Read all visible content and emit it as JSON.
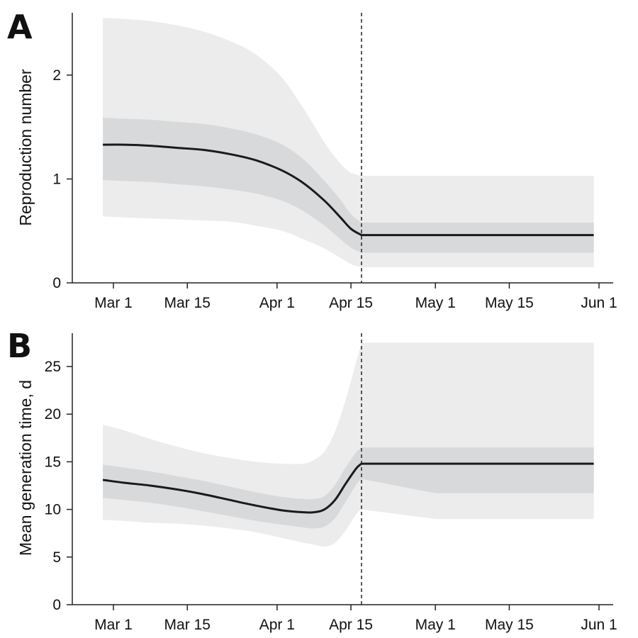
{
  "chart_data": [
    {
      "type": "area",
      "panel": "A",
      "xlabel": "",
      "ylabel": "Reproduction number",
      "x_unit": "date (2020)",
      "xlim": [
        "Feb 23",
        "Jun 2"
      ],
      "ylim": [
        0,
        2.6
      ],
      "x_ticks": [
        "Mar 1",
        "Mar 15",
        "Apr 1",
        "Apr 15",
        "May 1",
        "May 15",
        "Jun 1"
      ],
      "y_ticks": [
        "0",
        "1",
        "2"
      ],
      "y_tick_values": [
        0,
        1,
        2
      ],
      "vertical_line": "Apr 17",
      "grid": false,
      "x": [
        "Feb 27",
        "Mar 3",
        "Mar 8",
        "Mar 13",
        "Mar 18",
        "Mar 23",
        "Mar 28",
        "Apr 2",
        "Apr 6",
        "Apr 10",
        "Apr 13",
        "Apr 15",
        "Apr 17",
        "May 1",
        "May 15",
        "May 31"
      ],
      "series": [
        {
          "name": "median",
          "values": [
            1.33,
            1.33,
            1.32,
            1.3,
            1.28,
            1.24,
            1.18,
            1.08,
            0.96,
            0.79,
            0.63,
            0.52,
            0.46,
            0.46,
            0.46,
            0.46
          ]
        },
        {
          "name": "inner_interval",
          "lower": [
            0.99,
            0.98,
            0.97,
            0.95,
            0.93,
            0.9,
            0.86,
            0.79,
            0.69,
            0.55,
            0.42,
            0.34,
            0.29,
            0.29,
            0.29,
            0.29
          ],
          "upper": [
            1.59,
            1.58,
            1.57,
            1.55,
            1.53,
            1.49,
            1.43,
            1.33,
            1.19,
            0.98,
            0.8,
            0.66,
            0.58,
            0.58,
            0.58,
            0.58
          ]
        },
        {
          "name": "outer_interval",
          "lower": [
            0.64,
            0.63,
            0.62,
            0.61,
            0.6,
            0.59,
            0.55,
            0.5,
            0.42,
            0.33,
            0.24,
            0.18,
            0.15,
            0.15,
            0.15,
            0.15
          ],
          "upper": [
            2.55,
            2.54,
            2.52,
            2.48,
            2.42,
            2.33,
            2.2,
            1.97,
            1.68,
            1.35,
            1.15,
            1.06,
            1.03,
            1.03,
            1.03,
            1.03
          ]
        }
      ]
    },
    {
      "type": "area",
      "panel": "B",
      "xlabel": "",
      "ylabel": "Mean generation time, d",
      "x_unit": "date (2020)",
      "xlim": [
        "Feb 23",
        "Jun 2"
      ],
      "ylim": [
        0,
        28.5
      ],
      "x_ticks": [
        "Mar 1",
        "Mar 15",
        "Apr 1",
        "Apr 15",
        "May 1",
        "May 15",
        "Jun 1"
      ],
      "y_ticks": [
        "0",
        "5",
        "10",
        "15",
        "20",
        "25"
      ],
      "y_tick_values": [
        0,
        5,
        10,
        15,
        20,
        25
      ],
      "vertical_line": "Apr 17",
      "grid": false,
      "x": [
        "Feb 27",
        "Mar 3",
        "Mar 8",
        "Mar 13",
        "Mar 18",
        "Mar 23",
        "Mar 28",
        "Apr 2",
        "Apr 6",
        "Apr 8",
        "Apr 10",
        "Apr 12",
        "Apr 14",
        "Apr 16",
        "Apr 17",
        "May 1",
        "May 15",
        "May 31"
      ],
      "series": [
        {
          "name": "median",
          "values": [
            13.1,
            12.8,
            12.5,
            12.1,
            11.6,
            11.0,
            10.4,
            9.9,
            9.7,
            9.7,
            10.0,
            11.0,
            12.7,
            14.3,
            14.8,
            14.8,
            14.8,
            14.8
          ]
        },
        {
          "name": "inner_interval",
          "lower": [
            11.2,
            11.0,
            10.7,
            10.3,
            9.8,
            9.3,
            8.8,
            8.4,
            8.1,
            8.0,
            8.2,
            9.1,
            10.8,
            12.6,
            13.2,
            11.7,
            11.7,
            11.7
          ],
          "upper": [
            14.7,
            14.4,
            14.0,
            13.5,
            13.0,
            12.4,
            11.8,
            11.3,
            11.1,
            11.1,
            11.4,
            12.6,
            14.4,
            16.0,
            16.5,
            16.5,
            16.5,
            16.5
          ]
        },
        {
          "name": "outer_interval",
          "lower": [
            8.9,
            8.8,
            8.6,
            8.5,
            8.3,
            8.0,
            7.6,
            7.0,
            6.5,
            6.3,
            6.1,
            6.5,
            7.8,
            9.5,
            10.0,
            9.0,
            9.0,
            9.0
          ],
          "upper": [
            18.9,
            18.3,
            17.4,
            16.6,
            15.9,
            15.4,
            15.0,
            14.8,
            14.8,
            15.2,
            16.1,
            18.2,
            21.5,
            25.5,
            27.5,
            27.5,
            27.5,
            27.5
          ]
        }
      ]
    }
  ],
  "colors": {
    "outer_band": "#ececec",
    "inner_band": "#d8d9db",
    "median_line": "#1a1a1a",
    "axis": "#222222"
  }
}
